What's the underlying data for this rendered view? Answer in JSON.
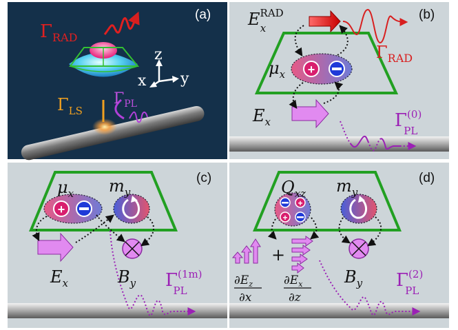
{
  "panels": {
    "a": {
      "label": "(a)",
      "gamma_rad": {
        "base": "Γ",
        "sub": "RAD"
      },
      "gamma_ls": {
        "base": "Γ",
        "sub": "LS"
      },
      "gamma_pl": {
        "base": "Γ",
        "sub": "PL"
      },
      "axis_x": "x",
      "axis_y": "y",
      "axis_z": "z"
    },
    "b": {
      "label": "(b)",
      "field_rad": {
        "base": "E",
        "sub": "x",
        "sup": "RAD"
      },
      "gamma_rad": {
        "base": "Γ",
        "sub": "RAD"
      },
      "dipole": {
        "base": "μ",
        "sub": "x"
      },
      "field": {
        "base": "E",
        "sub": "x"
      },
      "gamma_pl": {
        "base": "Γ",
        "sub": "PL",
        "sup": "(0)"
      }
    },
    "c": {
      "label": "(c)",
      "electric_dipole": {
        "base": "μ",
        "sub": "x"
      },
      "magnetic_dipole": {
        "base": "m",
        "sub": "y"
      },
      "field_e": {
        "base": "E",
        "sub": "x"
      },
      "field_b": {
        "base": "B",
        "sub": "y"
      },
      "gamma_pl": {
        "base": "Γ",
        "sub": "PL",
        "sup": "(1m)"
      }
    },
    "d": {
      "label": "(d)",
      "quadrupole": {
        "base": "Q",
        "sub": "xz"
      },
      "magnetic_dipole": {
        "base": "m",
        "sub": "y"
      },
      "plus": "+",
      "grad1": {
        "num_d": "∂",
        "num_v": "E",
        "num_s": "z",
        "den_d": "∂",
        "den_v": "x"
      },
      "grad2": {
        "num_d": "∂",
        "num_v": "E",
        "num_s": "x",
        "den_d": "∂",
        "den_v": "z"
      },
      "field_b": {
        "base": "B",
        "sub": "y"
      },
      "gamma_pl": {
        "base": "Γ",
        "sub": "PL",
        "sup": "(2)"
      }
    }
  },
  "colors": {
    "panel_a_bg": "#14304a",
    "panel_bg": "#cdd5d9",
    "antenna": "#22a022",
    "rad_red": "#d81f1f",
    "pl_purple": "#9b20b5",
    "ls_orange": "#f0a020",
    "arrow_fill": "#e18af0"
  },
  "icons": [
    "plus-charge-icon",
    "minus-charge-icon",
    "magnetic-loop-icon",
    "into-page-icon",
    "block-arrow-icon",
    "wave-icon"
  ]
}
